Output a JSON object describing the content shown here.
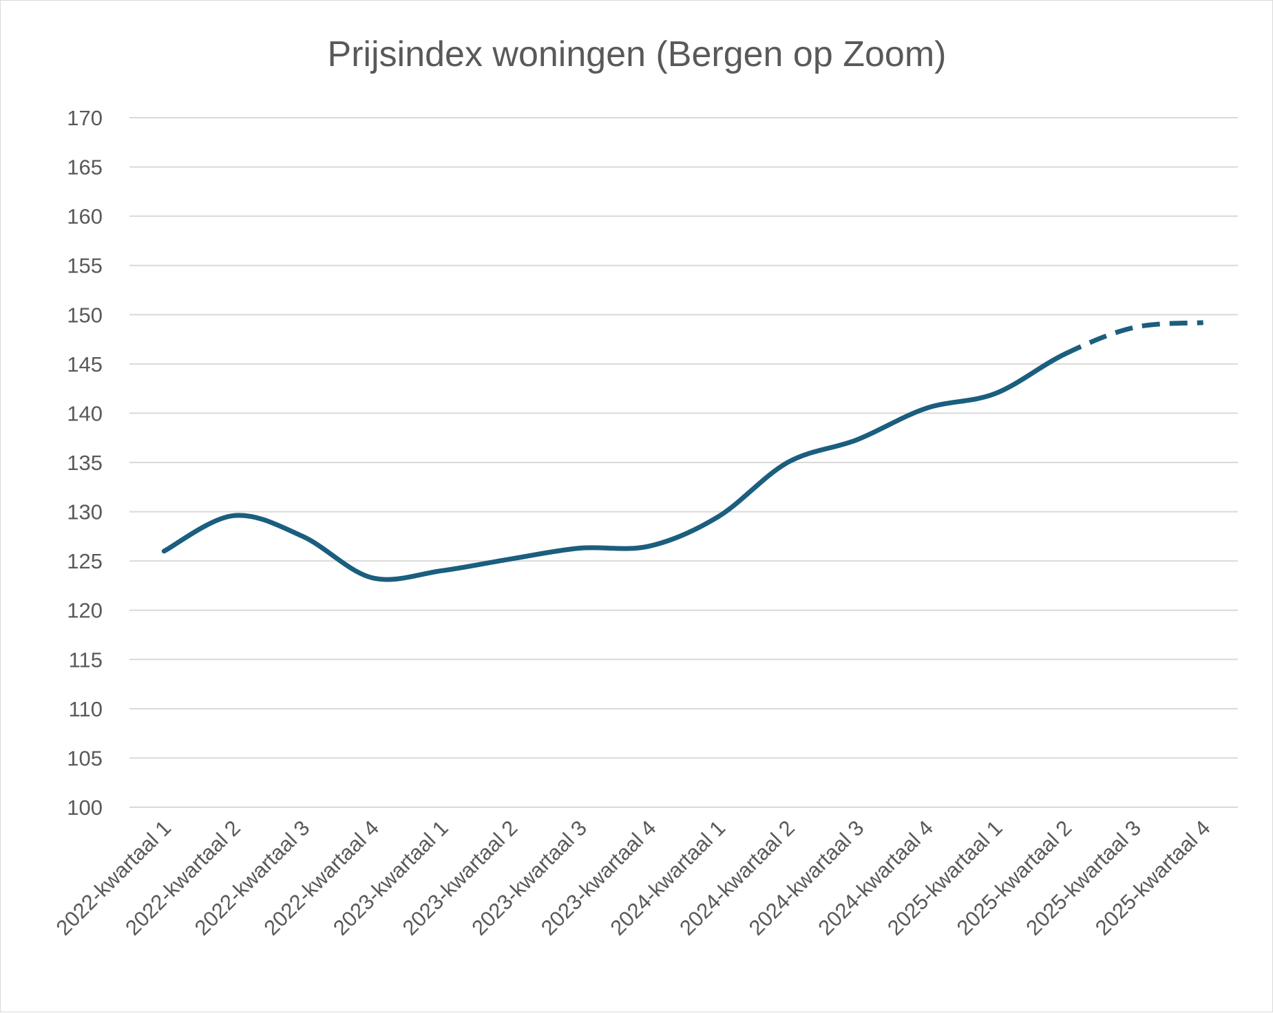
{
  "chart_data": {
    "type": "line",
    "title": "Prijsindex woningen (Bergen op Zoom)",
    "xlabel": "",
    "ylabel": "",
    "ylim": [
      100,
      170
    ],
    "yticks": [
      100,
      105,
      110,
      115,
      120,
      125,
      130,
      135,
      140,
      145,
      150,
      155,
      160,
      165,
      170
    ],
    "grid": true,
    "legend": "none",
    "categories": [
      "2022-kwartaal 1",
      "2022-kwartaal 2",
      "2022-kwartaal 3",
      "2022-kwartaal 4",
      "2023-kwartaal 1",
      "2023-kwartaal 2",
      "2023-kwartaal 3",
      "2023-kwartaal 4",
      "2024-kwartaal 1",
      "2024-kwartaal 2",
      "2024-kwartaal 3",
      "2024-kwartaal 4",
      "2025-kwartaal 1",
      "2025-kwartaal 2",
      "2025-kwartaal 3",
      "2025-kwartaal 4"
    ],
    "series": [
      {
        "color": "#1b5e7e",
        "values": [
          126,
          129.6,
          127.5,
          123.3,
          124,
          125.2,
          126.3,
          126.5,
          129.5,
          135,
          137.3,
          140.5,
          142,
          146,
          148.7,
          149.2
        ],
        "dashed_from_index": 13
      }
    ]
  }
}
